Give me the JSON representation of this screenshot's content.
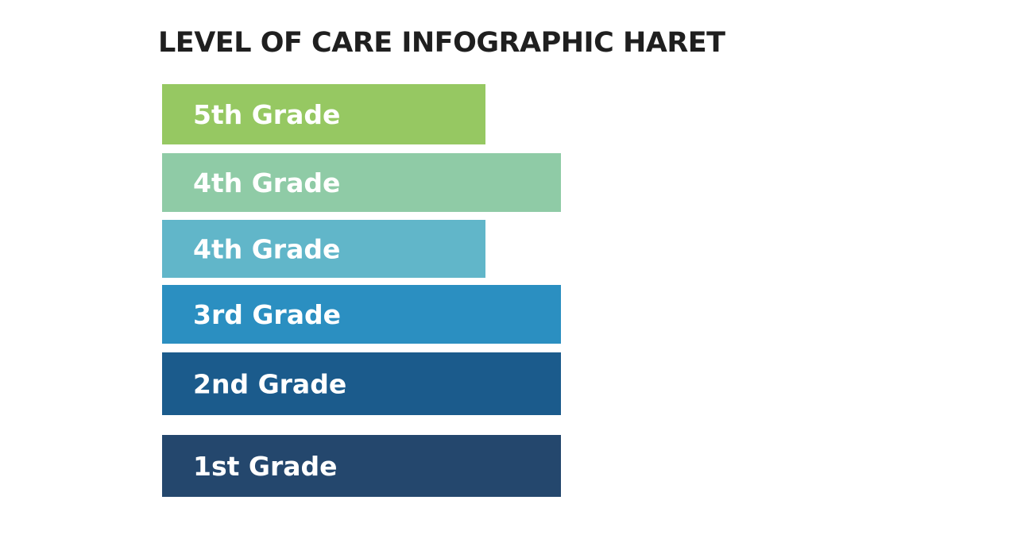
{
  "chart_data": {
    "type": "bar",
    "orientation": "horizontal",
    "title": "LEVEL OF CARE INFOGRAPHIC HARET",
    "categories": [
      "5th Grade",
      "4th Grade",
      "4th Grade",
      "3rd Grade",
      "2nd Grade",
      "1st Grade"
    ],
    "values": [
      0.81,
      1.0,
      0.81,
      1.0,
      1.0,
      1.0
    ],
    "colors": [
      "#96c862",
      "#8fcba6",
      "#61b6c9",
      "#2b8fc1",
      "#1b5b8c",
      "#24476d"
    ],
    "grid": false,
    "legend": "none"
  }
}
